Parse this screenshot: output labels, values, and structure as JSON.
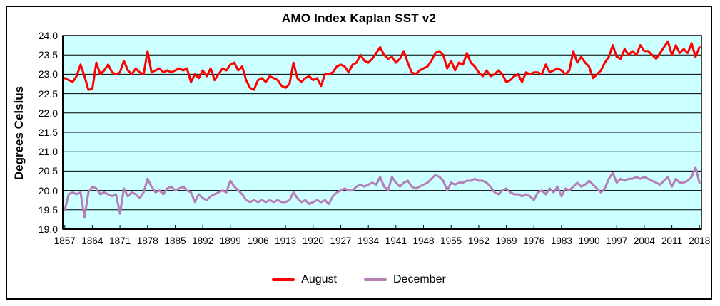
{
  "chart_data": {
    "type": "line",
    "title": "AMO Index Kaplan SST v2",
    "ylabel": "Degrees Celsius",
    "xlabel": "",
    "ylim": [
      19.0,
      24.0
    ],
    "ytick_step": 0.5,
    "ytick_labels": [
      "24.0",
      "23.5",
      "23.0",
      "22.5",
      "22.0",
      "21.5",
      "21.0",
      "20.5",
      "20.0",
      "19.5",
      "19.0"
    ],
    "x_start": 1857,
    "x_end": 2018,
    "xtick_labels": [
      "1857",
      "1864",
      "1871",
      "1878",
      "1885",
      "1892",
      "1899",
      "1906",
      "1913",
      "1920",
      "1927",
      "1934",
      "1941",
      "1948",
      "1955",
      "1962",
      "1969",
      "1976",
      "1983",
      "1990",
      "1997",
      "2004",
      "2011",
      "2018"
    ],
    "grid": "horizontal-black",
    "plot_bg": "#CCFFFF",
    "axis_color": "#000000",
    "legend_position": "bottom",
    "series": [
      {
        "name": "August",
        "color": "#FF0000",
        "values": [
          22.9,
          22.85,
          22.8,
          22.95,
          23.25,
          22.95,
          22.6,
          22.62,
          23.3,
          23.0,
          23.1,
          23.25,
          23.05,
          23.0,
          23.05,
          23.35,
          23.1,
          23.0,
          23.15,
          23.05,
          23.0,
          23.6,
          23.05,
          23.1,
          23.15,
          23.05,
          23.1,
          23.05,
          23.1,
          23.15,
          23.1,
          23.15,
          22.8,
          23.0,
          22.9,
          23.1,
          22.95,
          23.15,
          22.85,
          23.0,
          23.15,
          23.1,
          23.25,
          23.3,
          23.1,
          23.2,
          22.85,
          22.65,
          22.6,
          22.85,
          22.9,
          22.8,
          22.95,
          22.9,
          22.85,
          22.7,
          22.65,
          22.75,
          23.3,
          22.9,
          22.8,
          22.9,
          22.95,
          22.85,
          22.9,
          22.7,
          23.0,
          23.0,
          23.05,
          23.2,
          23.25,
          23.2,
          23.05,
          23.25,
          23.3,
          23.5,
          23.35,
          23.3,
          23.4,
          23.55,
          23.7,
          23.5,
          23.4,
          23.45,
          23.3,
          23.4,
          23.6,
          23.3,
          23.05,
          23.0,
          23.1,
          23.15,
          23.2,
          23.35,
          23.55,
          23.6,
          23.5,
          23.15,
          23.35,
          23.1,
          23.3,
          23.25,
          23.55,
          23.3,
          23.2,
          23.05,
          22.95,
          23.1,
          22.95,
          23.0,
          23.1,
          23.0,
          22.8,
          22.85,
          22.95,
          23.0,
          22.8,
          23.05,
          23.0,
          23.05,
          23.05,
          23.0,
          23.25,
          23.05,
          23.1,
          23.15,
          23.1,
          23.0,
          23.1,
          23.6,
          23.3,
          23.45,
          23.3,
          23.2,
          22.9,
          23.0,
          23.1,
          23.3,
          23.45,
          23.75,
          23.45,
          23.4,
          23.65,
          23.5,
          23.6,
          23.5,
          23.75,
          23.6,
          23.6,
          23.5,
          23.4,
          23.55,
          23.7,
          23.85,
          23.5,
          23.75,
          23.55,
          23.65,
          23.55,
          23.8,
          23.45,
          23.7
        ]
      },
      {
        "name": "December",
        "color": "#B57EB5",
        "values": [
          19.5,
          19.9,
          19.95,
          19.9,
          19.95,
          19.3,
          19.95,
          20.1,
          20.05,
          19.9,
          19.95,
          19.9,
          19.85,
          19.9,
          19.4,
          20.05,
          19.85,
          19.95,
          19.9,
          19.8,
          19.95,
          20.3,
          20.1,
          19.95,
          20.0,
          19.9,
          20.05,
          20.1,
          20.0,
          20.05,
          20.1,
          20.0,
          19.95,
          19.7,
          19.9,
          19.8,
          19.75,
          19.85,
          19.9,
          19.95,
          20.0,
          19.95,
          20.25,
          20.1,
          20.0,
          19.9,
          19.75,
          19.7,
          19.75,
          19.7,
          19.75,
          19.7,
          19.75,
          19.7,
          19.75,
          19.7,
          19.7,
          19.75,
          19.95,
          19.8,
          19.7,
          19.75,
          19.65,
          19.7,
          19.75,
          19.7,
          19.75,
          19.65,
          19.85,
          19.95,
          20.0,
          20.05,
          20.0,
          20.0,
          20.1,
          20.15,
          20.1,
          20.15,
          20.2,
          20.15,
          20.35,
          20.1,
          20.0,
          20.35,
          20.2,
          20.1,
          20.2,
          20.25,
          20.1,
          20.05,
          20.1,
          20.15,
          20.2,
          20.3,
          20.4,
          20.35,
          20.25,
          20.0,
          20.2,
          20.15,
          20.2,
          20.2,
          20.25,
          20.25,
          20.3,
          20.25,
          20.25,
          20.2,
          20.1,
          19.95,
          19.9,
          20.0,
          20.05,
          19.95,
          19.9,
          19.9,
          19.85,
          19.9,
          19.85,
          19.75,
          19.95,
          20.0,
          19.9,
          20.05,
          19.95,
          20.1,
          19.85,
          20.05,
          20.0,
          20.1,
          20.2,
          20.1,
          20.15,
          20.25,
          20.15,
          20.05,
          19.95,
          20.05,
          20.3,
          20.45,
          20.2,
          20.3,
          20.25,
          20.3,
          20.3,
          20.35,
          20.3,
          20.35,
          20.3,
          20.25,
          20.2,
          20.15,
          20.25,
          20.35,
          20.1,
          20.3,
          20.2,
          20.2,
          20.25,
          20.35,
          20.6,
          20.2
        ]
      }
    ]
  }
}
